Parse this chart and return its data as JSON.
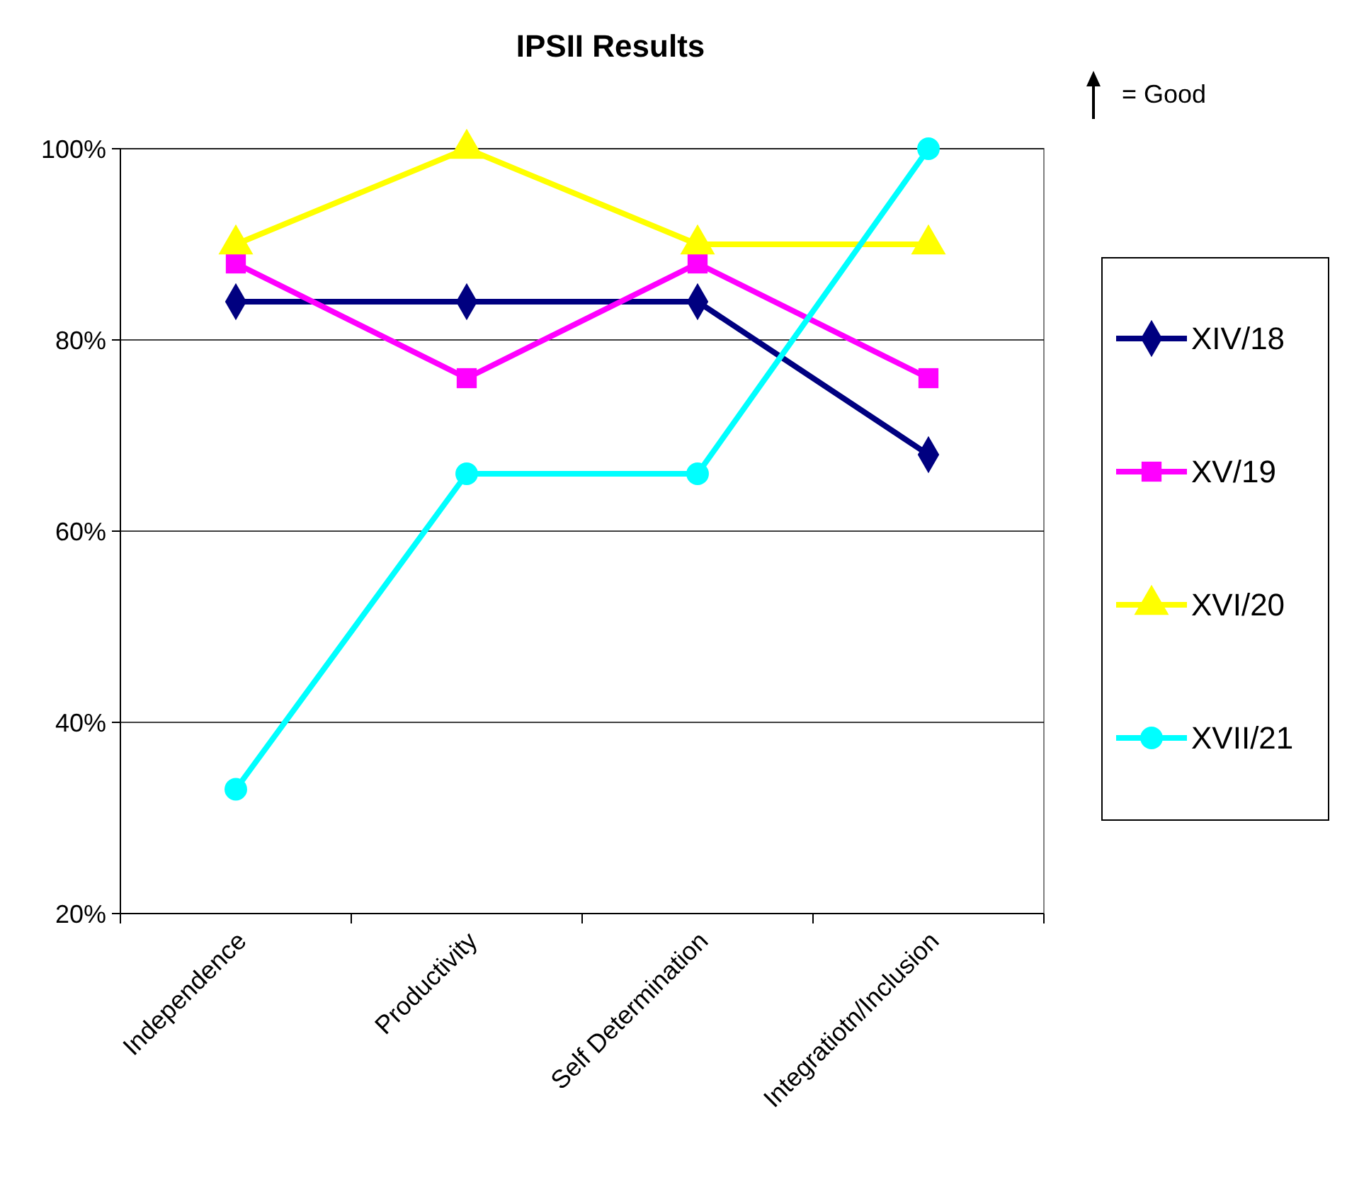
{
  "chart_data": {
    "type": "line",
    "title": "IPSII Results",
    "annotations": [
      "= Good"
    ],
    "categories": [
      "Independence",
      "Productivity",
      "Self Determination",
      "Integratiotn/Inclusion"
    ],
    "series": [
      {
        "name": "XIV/18",
        "color": "#000080",
        "marker": "diamond",
        "values": [
          84,
          84,
          84,
          68
        ]
      },
      {
        "name": "XV/19",
        "color": "#ff00ff",
        "marker": "square",
        "values": [
          88,
          76,
          88,
          76
        ]
      },
      {
        "name": "XVI/20",
        "color": "#ffff00",
        "marker": "triangle",
        "values": [
          90,
          100,
          90,
          90
        ]
      },
      {
        "name": "XVII/21",
        "color": "#00ffff",
        "marker": "circle",
        "values": [
          33,
          66,
          66,
          100
        ]
      }
    ],
    "ylim": [
      20,
      100
    ],
    "yticks": [
      {
        "value": 20,
        "label": "20%"
      },
      {
        "value": 40,
        "label": "40%"
      },
      {
        "value": 60,
        "label": "60%"
      },
      {
        "value": 80,
        "label": "80%"
      },
      {
        "value": 100,
        "label": "100%"
      }
    ],
    "grid": "y",
    "legend": "right",
    "line_style": "solid"
  }
}
